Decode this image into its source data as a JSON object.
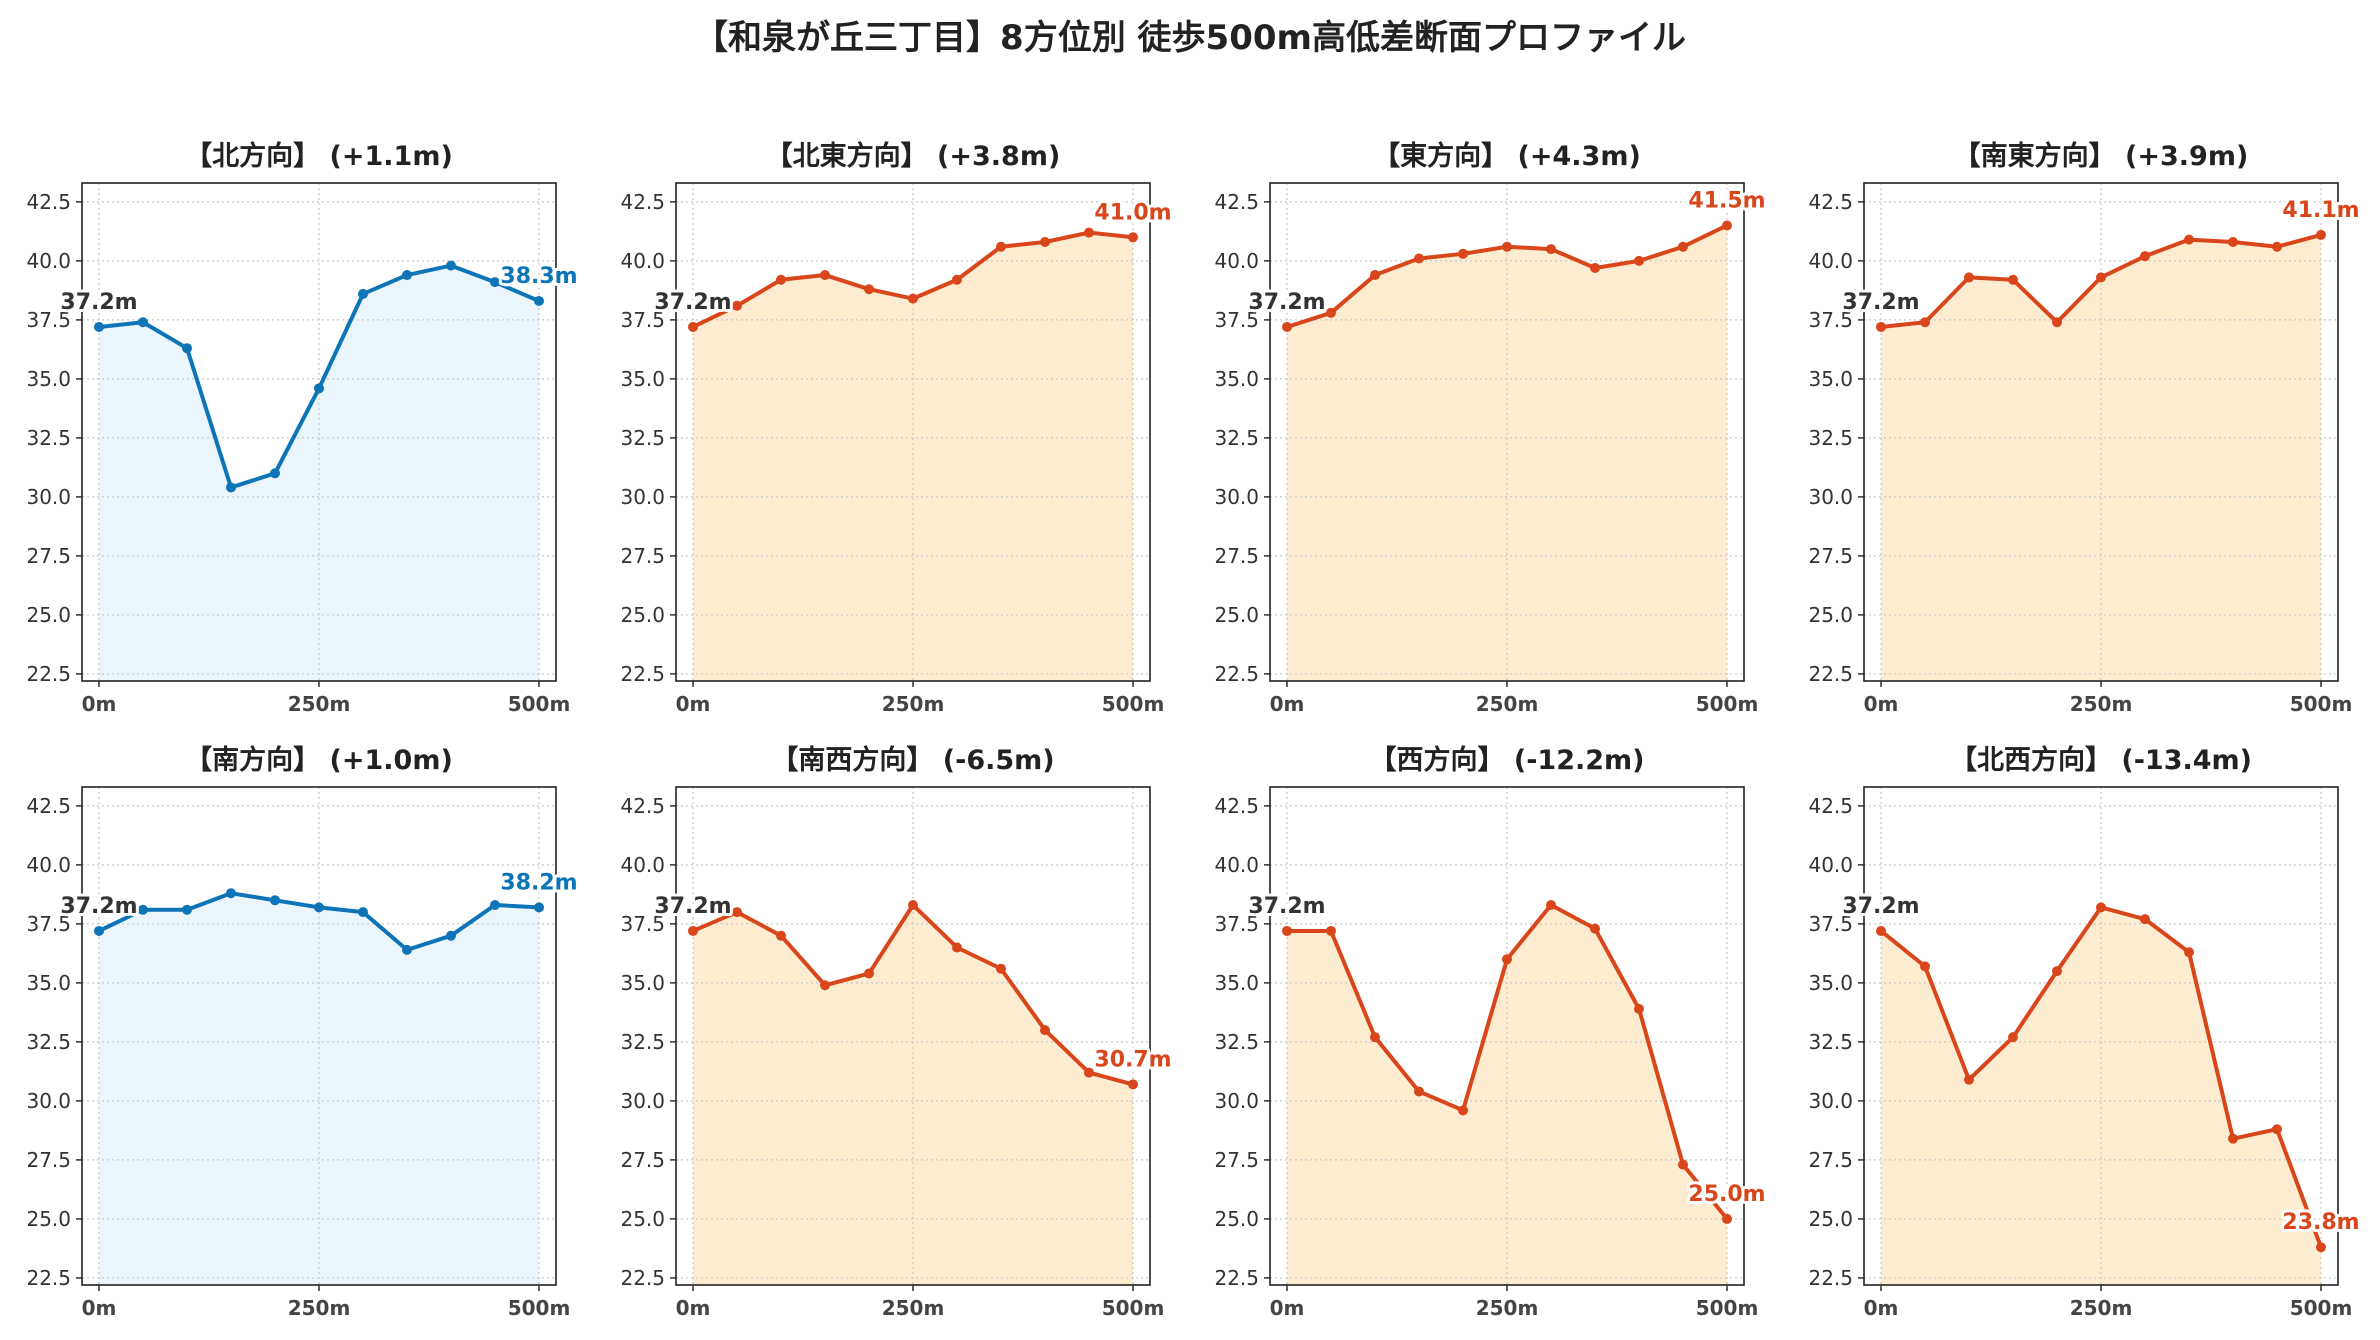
{
  "title": "【和泉が丘三丁目】8方位別 徒歩500m高低差断面プロファイル",
  "colors": {
    "rise_line": "#d9461b",
    "rise_fill": "#fdeccf",
    "flat_line": "#0e74b8",
    "flat_fill": "#eaf6fb",
    "start_label": "#333333"
  },
  "chart_data": [
    {
      "type": "area",
      "title": "【北方向】 (+1.1m)",
      "color_scheme": "flat",
      "x": [
        0,
        50,
        100,
        150,
        200,
        250,
        300,
        350,
        400,
        450,
        500
      ],
      "values": [
        37.2,
        37.4,
        36.3,
        30.4,
        31.0,
        34.6,
        38.6,
        39.4,
        39.8,
        39.1,
        38.3
      ],
      "start_label": "37.2m",
      "end_label": "38.3m",
      "xticks": [
        "0m",
        "250m",
        "500m"
      ],
      "xlim": [
        0,
        500
      ],
      "ylim": [
        22.2,
        43.3
      ],
      "yticks": [
        "22.5",
        "25.0",
        "27.5",
        "30.0",
        "32.5",
        "35.0",
        "37.5",
        "40.0",
        "42.5"
      ],
      "grid": true
    },
    {
      "type": "area",
      "title": "【北東方向】 (+3.8m)",
      "color_scheme": "rise",
      "x": [
        0,
        50,
        100,
        150,
        200,
        250,
        300,
        350,
        400,
        450,
        500
      ],
      "values": [
        37.2,
        38.1,
        39.2,
        39.4,
        38.8,
        38.4,
        39.2,
        40.6,
        40.8,
        41.2,
        41.0
      ],
      "start_label": "37.2m",
      "end_label": "41.0m",
      "xticks": [
        "0m",
        "250m",
        "500m"
      ],
      "xlim": [
        0,
        500
      ],
      "ylim": [
        22.2,
        43.3
      ],
      "yticks": [
        "22.5",
        "25.0",
        "27.5",
        "30.0",
        "32.5",
        "35.0",
        "37.5",
        "40.0",
        "42.5"
      ],
      "grid": true
    },
    {
      "type": "area",
      "title": "【東方向】 (+4.3m)",
      "color_scheme": "rise",
      "x": [
        0,
        50,
        100,
        150,
        200,
        250,
        300,
        350,
        400,
        450,
        500
      ],
      "values": [
        37.2,
        37.8,
        39.4,
        40.1,
        40.3,
        40.6,
        40.5,
        39.7,
        40.0,
        40.6,
        41.5
      ],
      "start_label": "37.2m",
      "end_label": "41.5m",
      "xticks": [
        "0m",
        "250m",
        "500m"
      ],
      "xlim": [
        0,
        500
      ],
      "ylim": [
        22.2,
        43.3
      ],
      "yticks": [
        "22.5",
        "25.0",
        "27.5",
        "30.0",
        "32.5",
        "35.0",
        "37.5",
        "40.0",
        "42.5"
      ],
      "grid": true
    },
    {
      "type": "area",
      "title": "【南東方向】 (+3.9m)",
      "color_scheme": "rise",
      "x": [
        0,
        50,
        100,
        150,
        200,
        250,
        300,
        350,
        400,
        450,
        500
      ],
      "values": [
        37.2,
        37.4,
        39.3,
        39.2,
        37.4,
        39.3,
        40.2,
        40.9,
        40.8,
        40.6,
        41.1
      ],
      "start_label": "37.2m",
      "end_label": "41.1m",
      "xticks": [
        "0m",
        "250m",
        "500m"
      ],
      "xlim": [
        0,
        500
      ],
      "ylim": [
        22.2,
        43.3
      ],
      "yticks": [
        "22.5",
        "25.0",
        "27.5",
        "30.0",
        "32.5",
        "35.0",
        "37.5",
        "40.0",
        "42.5"
      ],
      "grid": true
    },
    {
      "type": "area",
      "title": "【南方向】 (+1.0m)",
      "color_scheme": "flat",
      "x": [
        0,
        50,
        100,
        150,
        200,
        250,
        300,
        350,
        400,
        450,
        500
      ],
      "values": [
        37.2,
        38.1,
        38.1,
        38.8,
        38.5,
        38.2,
        38.0,
        36.4,
        37.0,
        38.3,
        38.2
      ],
      "start_label": "37.2m",
      "end_label": "38.2m",
      "xticks": [
        "0m",
        "250m",
        "500m"
      ],
      "xlim": [
        0,
        500
      ],
      "ylim": [
        22.2,
        43.3
      ],
      "yticks": [
        "22.5",
        "25.0",
        "27.5",
        "30.0",
        "32.5",
        "35.0",
        "37.5",
        "40.0",
        "42.5"
      ],
      "grid": true
    },
    {
      "type": "area",
      "title": "【南西方向】 (-6.5m)",
      "color_scheme": "rise",
      "x": [
        0,
        50,
        100,
        150,
        200,
        250,
        300,
        350,
        400,
        450,
        500
      ],
      "values": [
        37.2,
        38.0,
        37.0,
        34.9,
        35.4,
        38.3,
        36.5,
        35.6,
        33.0,
        31.2,
        30.7
      ],
      "start_label": "37.2m",
      "end_label": "30.7m",
      "xticks": [
        "0m",
        "250m",
        "500m"
      ],
      "xlim": [
        0,
        500
      ],
      "ylim": [
        22.2,
        43.3
      ],
      "yticks": [
        "22.5",
        "25.0",
        "27.5",
        "30.0",
        "32.5",
        "35.0",
        "37.5",
        "40.0",
        "42.5"
      ],
      "grid": true
    },
    {
      "type": "area",
      "title": "【西方向】 (-12.2m)",
      "color_scheme": "rise",
      "x": [
        0,
        50,
        100,
        150,
        200,
        250,
        300,
        350,
        400,
        450,
        500
      ],
      "values": [
        37.2,
        37.2,
        32.7,
        30.4,
        29.6,
        36.0,
        38.3,
        37.3,
        33.9,
        27.3,
        25.0
      ],
      "start_label": "37.2m",
      "end_label": "25.0m",
      "xticks": [
        "0m",
        "250m",
        "500m"
      ],
      "xlim": [
        0,
        500
      ],
      "ylim": [
        22.2,
        43.3
      ],
      "yticks": [
        "22.5",
        "25.0",
        "27.5",
        "30.0",
        "32.5",
        "35.0",
        "37.5",
        "40.0",
        "42.5"
      ],
      "grid": true
    },
    {
      "type": "area",
      "title": "【北西方向】 (-13.4m)",
      "color_scheme": "rise",
      "x": [
        0,
        50,
        100,
        150,
        200,
        250,
        300,
        350,
        400,
        450,
        500
      ],
      "values": [
        37.2,
        35.7,
        30.9,
        32.7,
        35.5,
        38.2,
        37.7,
        36.3,
        28.4,
        28.8,
        23.8
      ],
      "start_label": "37.2m",
      "end_label": "23.8m",
      "xticks": [
        "0m",
        "250m",
        "500m"
      ],
      "xlim": [
        0,
        500
      ],
      "ylim": [
        22.2,
        43.3
      ],
      "yticks": [
        "22.5",
        "25.0",
        "27.5",
        "30.0",
        "32.5",
        "35.0",
        "37.5",
        "40.0",
        "42.5"
      ],
      "grid": true
    }
  ]
}
